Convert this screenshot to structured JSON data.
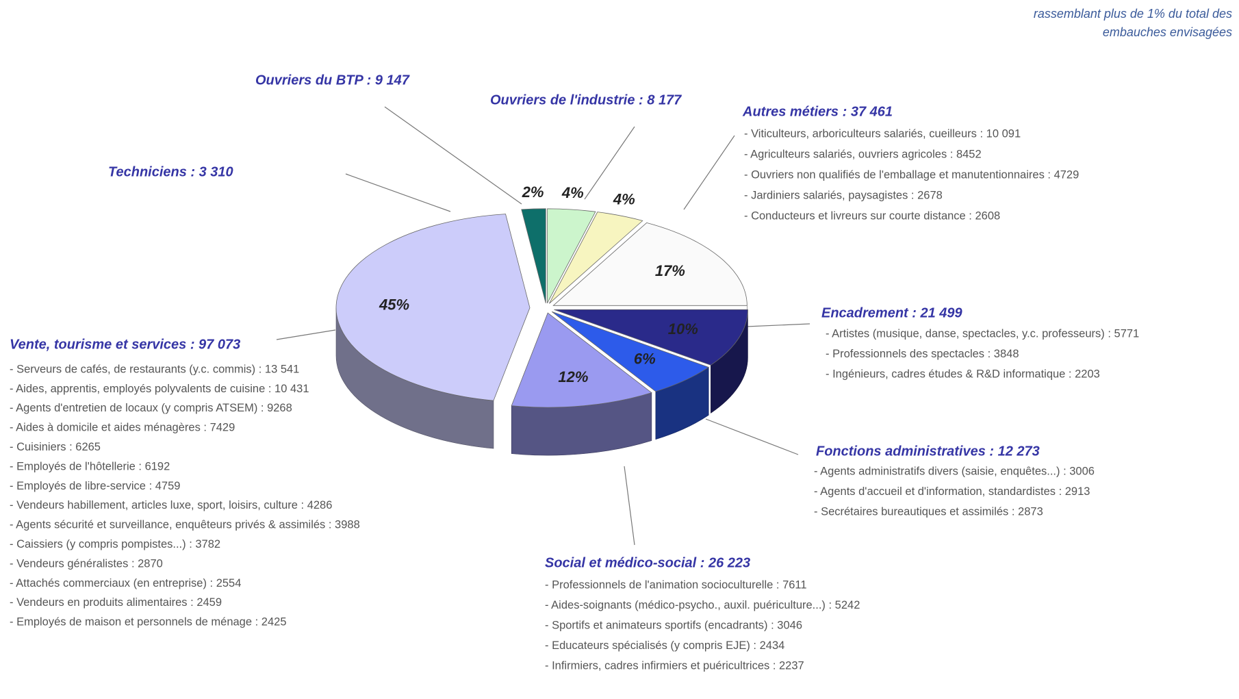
{
  "chart_data": {
    "type": "pie",
    "subtitle": [
      "rassemblant plus de 1% du total des",
      "embauches envisagées"
    ],
    "categories": [
      "Techniciens : 3 310",
      "Ouvriers du BTP : 9 147",
      "Ouvriers de l'industrie : 8 177",
      "Autres métiers : 37 461",
      "Encadrement : 21 499",
      "Fonctions administratives : 12 273",
      "Social et médico-social : 26 223",
      "Vente, tourisme et services : 97 073"
    ],
    "values": [
      2,
      4,
      4,
      17,
      10,
      6,
      12,
      45
    ],
    "value_labels": [
      "2%",
      "4%",
      "4%",
      "17%",
      "10%",
      "6%",
      "12%",
      "45%"
    ],
    "colors": [
      "#0e6f6a",
      "#ccf5cc",
      "#f7f5c0",
      "#fafafa",
      "#2a2a8a",
      "#2d5bea",
      "#9a9af0",
      "#ccccfa"
    ],
    "details": [
      [],
      [],
      [],
      [
        "- Viticulteurs, arboriculteurs salariés, cueilleurs : 10 091",
        "- Agriculteurs salariés, ouvriers agricoles : 8452",
        "- Ouvriers non qualifiés de l'emballage et manutentionnaires : 4729",
        "- Jardiniers salariés, paysagistes : 2678",
        "- Conducteurs et livreurs sur courte distance : 2608"
      ],
      [
        "- Artistes (musique, danse, spectacles, y.c. professeurs) : 5771",
        "- Professionnels des spectacles : 3848",
        "- Ingénieurs, cadres études & R&D informatique : 2203"
      ],
      [
        "- Agents administratifs divers (saisie, enquêtes...) : 3006",
        "- Agents d'accueil et d'information, standardistes : 2913",
        "- Secrétaires bureautiques et assimilés : 2873"
      ],
      [
        "- Professionnels de l'animation socioculturelle : 7611",
        "- Aides-soignants (médico-psycho., auxil. puériculture...) : 5242",
        "- Sportifs et animateurs sportifs (encadrants) : 3046",
        "- Educateurs spécialisés (y compris EJE) : 2434",
        "- Infirmiers, cadres infirmiers et puéricultrices : 2237"
      ],
      [
        "- Serveurs de cafés, de restaurants (y.c. commis) : 13 541",
        "- Aides, apprentis, employés polyvalents de cuisine : 10 431",
        "- Agents d'entretien de locaux (y compris ATSEM) : 9268",
        "- Aides à domicile et aides ménagères : 7429",
        "- Cuisiniers : 6265",
        "- Employés de l'hôtellerie : 6192",
        "- Employés de libre-service : 4759",
        "- Vendeurs habillement, articles luxe, sport, loisirs, culture : 4286",
        "- Agents sécurité et surveillance, enquêteurs privés & assimilés : 3988",
        "- Caissiers (y compris pompistes...) : 3782",
        "- Vendeurs généralistes : 2870",
        "- Attachés commerciaux (en entreprise) : 2554",
        "- Vendeurs en produits alimentaires : 2459",
        "- Employés de maison et personnels de ménage : 2425"
      ]
    ]
  }
}
